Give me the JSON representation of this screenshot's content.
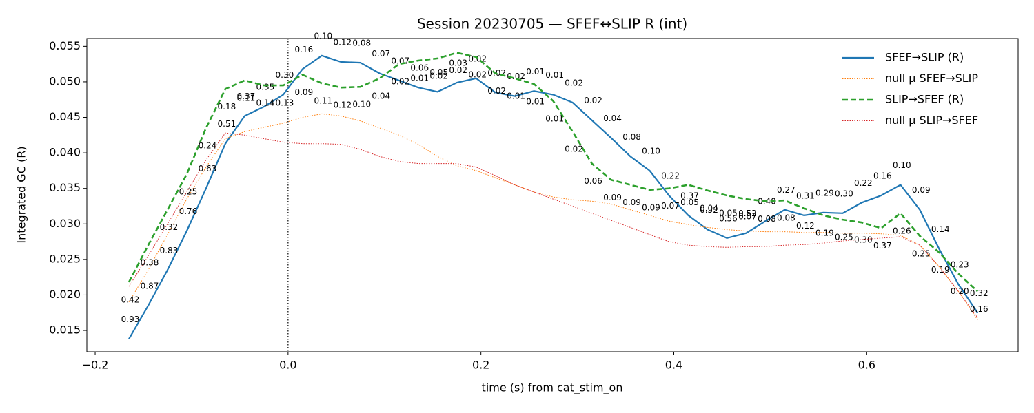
{
  "chart_data": {
    "type": "line",
    "title": "Session 20230705 — SFEF↔SLIP R (int)",
    "x_label": "time (s) from cat_stim_on",
    "y_label": "Integrated GC (R)",
    "x": [
      -0.165,
      -0.145,
      -0.125,
      -0.105,
      -0.085,
      -0.065,
      -0.045,
      -0.025,
      -0.005,
      0.015,
      0.035,
      0.055,
      0.075,
      0.095,
      0.115,
      0.135,
      0.155,
      0.175,
      0.195,
      0.215,
      0.235,
      0.255,
      0.275,
      0.295,
      0.315,
      0.335,
      0.355,
      0.375,
      0.395,
      0.415,
      0.435,
      0.455,
      0.475,
      0.495,
      0.515,
      0.535,
      0.555,
      0.575,
      0.595,
      0.615,
      0.635,
      0.655,
      0.675,
      0.695,
      0.715
    ],
    "vline": 0,
    "xlim": [
      -0.2086,
      0.757
    ],
    "ylim": [
      0.012,
      0.0561
    ],
    "xticks": [
      {
        "value": -0.2,
        "label": "−0.2"
      },
      {
        "value": 0,
        "label": "0.0"
      },
      {
        "value": 0.2,
        "label": "0.2"
      },
      {
        "value": 0.4,
        "label": "0.4"
      },
      {
        "value": 0.6,
        "label": "0.6"
      }
    ],
    "yticks": [
      0.015,
      {
        "value": 0.02,
        "label": "0.020"
      },
      0.025,
      {
        "value": 0.03,
        "label": "0.030"
      },
      0.035,
      {
        "value": 0.04,
        "label": "0.040"
      },
      0.045,
      {
        "value": 0.05,
        "label": "0.050"
      },
      0.055
    ],
    "legend": "upper right",
    "series": [
      {
        "name": "SFEF→SLIP (R)",
        "color": "#1f77b4",
        "dash": "solid",
        "width": 2.2,
        "label_side": "above",
        "values": [
          0.0138,
          0.0185,
          0.0235,
          0.029,
          0.035,
          0.0413,
          0.0452,
          0.0465,
          0.0482,
          0.0518,
          0.0537,
          0.0528,
          0.0527,
          0.0512,
          0.0502,
          0.0492,
          0.0486,
          0.0499,
          0.0505,
          0.0485,
          0.048,
          0.0487,
          0.0482,
          0.0471,
          0.0446,
          0.0421,
          0.0395,
          0.0375,
          0.034,
          0.0312,
          0.0292,
          0.028,
          0.0287,
          0.0304,
          0.032,
          0.0312,
          0.0316,
          0.0315,
          0.033,
          0.034,
          0.0355,
          0.032,
          0.0265,
          0.0215,
          0.0175
        ],
        "labels": [
          "0.93",
          "0.87",
          "0.83",
          "0.76",
          "0.63",
          "0.51",
          "0.37",
          "0.35",
          "0.30",
          "0.16",
          "0.10",
          "0.12",
          "0.08",
          "0.07",
          "0.07",
          "0.06",
          "0.05",
          "0.03",
          "0.02",
          "0.02",
          "0.02",
          "0.01",
          "0.01",
          "0.02",
          "0.02",
          "0.04",
          "0.08",
          "0.10",
          "0.22",
          "0.37",
          "0.52",
          "0.56",
          "0.52",
          "0.40",
          "0.27",
          "0.31",
          "0.29",
          "0.30",
          "0.22",
          "0.16",
          "0.10",
          "0.09",
          "0.14",
          "0.23",
          "0.32"
        ]
      },
      {
        "name": "null μ SFEF→SLIP",
        "color": "#ff7f0e",
        "dash": "dotted",
        "width": 1,
        "values": [
          0.019,
          0.0235,
          0.0285,
          0.0335,
          0.038,
          0.042,
          0.043,
          0.0436,
          0.0442,
          0.045,
          0.0455,
          0.0452,
          0.0445,
          0.0435,
          0.0425,
          0.0412,
          0.0395,
          0.0382,
          0.0375,
          0.0365,
          0.0355,
          0.0345,
          0.0338,
          0.0334,
          0.0332,
          0.0328,
          0.032,
          0.0312,
          0.0304,
          0.0299,
          0.0295,
          0.0292,
          0.029,
          0.0289,
          0.0289,
          0.0288,
          0.0288,
          0.0287,
          0.0287,
          0.0286,
          0.0284,
          0.027,
          0.024,
          0.0205,
          0.0165
        ]
      },
      {
        "name": "SLIP→SFEF (R)",
        "color": "#2ca02c",
        "dash": "dashed",
        "width": 2.6,
        "label_side": "below",
        "values": [
          0.0218,
          0.027,
          0.032,
          0.037,
          0.0435,
          0.049,
          0.0502,
          0.0495,
          0.0495,
          0.051,
          0.0498,
          0.0492,
          0.0493,
          0.0505,
          0.0525,
          0.053,
          0.0533,
          0.0541,
          0.0535,
          0.0512,
          0.0505,
          0.0497,
          0.0473,
          0.043,
          0.0385,
          0.0362,
          0.0355,
          0.0348,
          0.035,
          0.0355,
          0.0347,
          0.034,
          0.0335,
          0.0332,
          0.0333,
          0.0322,
          0.0312,
          0.0306,
          0.0302,
          0.0294,
          0.0315,
          0.0283,
          0.026,
          0.023,
          0.0205
        ],
        "labels": [
          "0.42",
          "0.38",
          "0.32",
          "0.25",
          "0.24",
          "0.18",
          "0.11",
          "0.14",
          "0.13",
          "0.09",
          "0.11",
          "0.12",
          "0.10",
          "0.04",
          "0.02",
          "0.01",
          "0.02",
          "0.02",
          "0.02",
          "0.02",
          "0.01",
          "0.01",
          "0.01",
          "0.02",
          "0.06",
          "0.09",
          "0.09",
          "0.09",
          "0.07",
          "0.05",
          "0.04",
          "0.05",
          "0.07",
          "0.08",
          "0.08",
          "0.12",
          "0.19",
          "0.25",
          "0.30",
          "0.37",
          "0.26",
          "0.25",
          "0.19",
          "0.20",
          "0.16"
        ]
      },
      {
        "name": "null μ SLIP→SFEF",
        "color": "#d62728",
        "dash": "dotted",
        "width": 1,
        "values": [
          0.0212,
          0.0255,
          0.03,
          0.0345,
          0.039,
          0.0428,
          0.0425,
          0.042,
          0.0415,
          0.0413,
          0.0413,
          0.0412,
          0.0405,
          0.0395,
          0.0388,
          0.0385,
          0.0385,
          0.0385,
          0.038,
          0.0368,
          0.0355,
          0.0345,
          0.0335,
          0.0325,
          0.0315,
          0.0305,
          0.0295,
          0.0285,
          0.0275,
          0.027,
          0.0268,
          0.0267,
          0.0268,
          0.0268,
          0.027,
          0.0271,
          0.0273,
          0.0276,
          0.0278,
          0.028,
          0.0282,
          0.027,
          0.024,
          0.0205,
          0.0168
        ]
      }
    ]
  }
}
